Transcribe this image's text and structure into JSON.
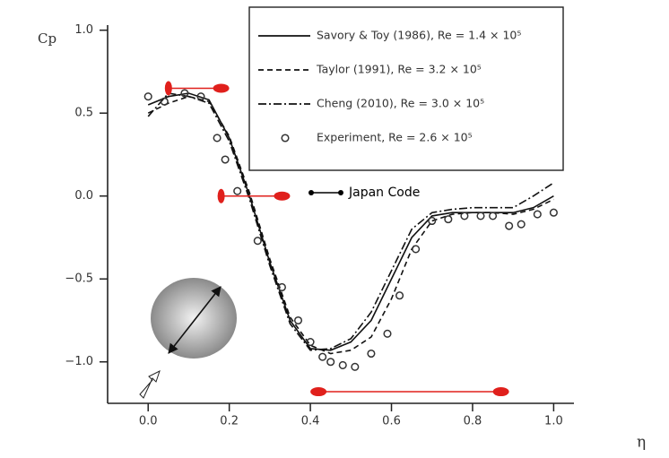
{
  "chart_data": {
    "type": "line",
    "y_label": "Cp",
    "x_label": "η",
    "xlim": [
      -0.1,
      1.05
    ],
    "ylim": [
      -1.25,
      1.02
    ],
    "xticks": [
      {
        "value": 0,
        "label": "0.0"
      },
      0.2,
      0.4,
      0.6,
      0.8,
      {
        "value": 1,
        "label": "1.0"
      }
    ],
    "yticks": [
      {
        "value": -1,
        "label": "−1.0"
      },
      {
        "value": -0.5,
        "label": "−0.5"
      },
      {
        "value": 0,
        "label": "0.0"
      },
      {
        "value": 0.5,
        "label": "0.5"
      },
      {
        "value": 1,
        "label": "1.0"
      }
    ],
    "series": [
      {
        "name": "Savory & Toy (1986), Re = 1.4 × 10⁵",
        "color": "#111111",
        "style": "solid",
        "x": [
          0,
          0.05,
          0.1,
          0.15,
          0.2,
          0.25,
          0.3,
          0.35,
          0.4,
          0.45,
          0.5,
          0.55,
          0.6,
          0.65,
          0.7,
          0.75,
          0.8,
          0.85,
          0.9,
          0.95,
          1.0
        ],
        "values": [
          0.55,
          0.6,
          0.62,
          0.58,
          0.35,
          0.0,
          -0.4,
          -0.75,
          -0.92,
          -0.93,
          -0.88,
          -0.75,
          -0.5,
          -0.25,
          -0.12,
          -0.1,
          -0.1,
          -0.1,
          -0.1,
          -0.07,
          0.0
        ]
      },
      {
        "name": "Taylor (1991), Re = 3.2 × 10⁵",
        "color": "#111111",
        "style": "dashed",
        "x": [
          0,
          0.05,
          0.1,
          0.15,
          0.2,
          0.25,
          0.3,
          0.35,
          0.4,
          0.45,
          0.5,
          0.55,
          0.6,
          0.65,
          0.7,
          0.75,
          0.8,
          0.85,
          0.9,
          0.95,
          1.0
        ],
        "values": [
          0.5,
          0.56,
          0.6,
          0.57,
          0.36,
          0.02,
          -0.38,
          -0.73,
          -0.9,
          -0.95,
          -0.93,
          -0.85,
          -0.62,
          -0.32,
          -0.15,
          -0.11,
          -0.1,
          -0.1,
          -0.11,
          -0.08,
          -0.02
        ]
      },
      {
        "name": "Cheng (2010), Re = 3.0 × 10⁵",
        "color": "#111111",
        "style": "dashdot",
        "x": [
          0,
          0.05,
          0.1,
          0.15,
          0.2,
          0.25,
          0.3,
          0.35,
          0.4,
          0.45,
          0.5,
          0.55,
          0.6,
          0.65,
          0.7,
          0.75,
          0.8,
          0.85,
          0.9,
          0.95,
          1.0
        ],
        "values": [
          0.48,
          0.62,
          0.6,
          0.56,
          0.33,
          -0.02,
          -0.42,
          -0.77,
          -0.93,
          -0.92,
          -0.86,
          -0.7,
          -0.45,
          -0.2,
          -0.1,
          -0.08,
          -0.07,
          -0.07,
          -0.07,
          0.0,
          0.08
        ]
      },
      {
        "name": "Experiment, Re = 2.6 × 10⁵",
        "color": "#333333",
        "style": "markers",
        "x": [
          0.0,
          0.04,
          0.09,
          0.13,
          0.17,
          0.19,
          0.22,
          0.27,
          0.33,
          0.37,
          0.4,
          0.43,
          0.45,
          0.48,
          0.51,
          0.55,
          0.59,
          0.62,
          0.66,
          0.7,
          0.74,
          0.78,
          0.82,
          0.85,
          0.89,
          0.92,
          0.96,
          1.0
        ],
        "values": [
          0.6,
          0.57,
          0.62,
          0.6,
          0.35,
          0.22,
          0.03,
          -0.27,
          -0.55,
          -0.75,
          -0.88,
          -0.97,
          -1.0,
          -1.02,
          -1.03,
          -0.95,
          -0.83,
          -0.6,
          -0.32,
          -0.15,
          -0.14,
          -0.12,
          -0.12,
          -0.12,
          -0.18,
          -0.17,
          -0.11,
          -0.1
        ]
      },
      {
        "name": "Japan Code",
        "color": "#e0201c",
        "legend_color": "#000000",
        "style": "segments",
        "segments": [
          {
            "x": [
              0.05,
              0.18
            ],
            "values": [
              0.65,
              0.65
            ]
          },
          {
            "x": [
              0.18,
              0.33
            ],
            "values": [
              0.0,
              0.0
            ]
          },
          {
            "x": [
              0.42,
              0.87
            ],
            "values": [
              -1.18,
              -1.18
            ]
          }
        ]
      }
    ]
  }
}
